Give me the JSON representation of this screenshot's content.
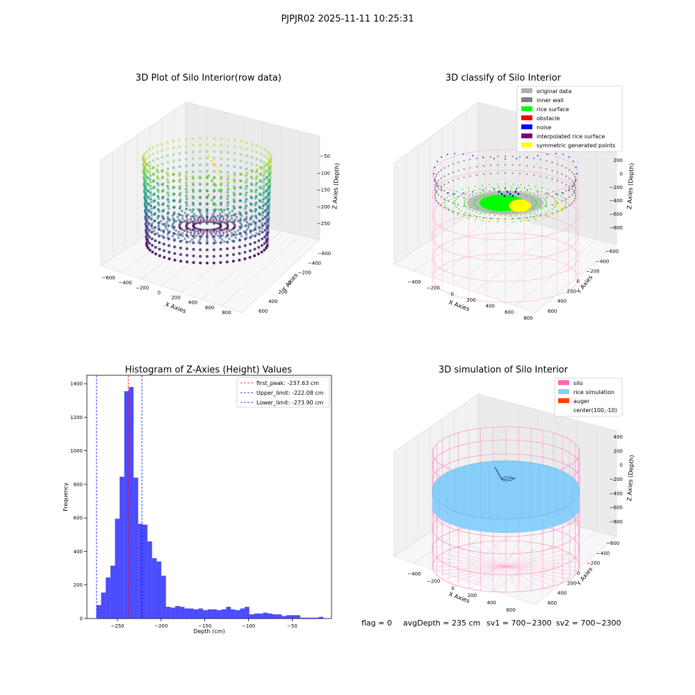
{
  "suptitle": "PJPJR02 2025-11-11 10:25:31",
  "panels": {
    "raw": {
      "title": "3D Plot of Silo Interior(row data)",
      "xlabel": "X Axies",
      "ylabel": "Y Axies",
      "zlabel": "Z Axies (Depth)",
      "xticks": [
        "−600",
        "−400",
        "−200",
        "0",
        "200",
        "400",
        "600",
        "800"
      ],
      "yticks": [
        "−600",
        "−400",
        "−200",
        "0",
        "200",
        "400",
        "600"
      ],
      "zticks": [
        "−50",
        "−100",
        "−150",
        "−200",
        "−250"
      ]
    },
    "classify": {
      "title": "3D classify of Silo Interior",
      "xlabel": "X Axies",
      "ylabel": "Y Axies",
      "zlabel": "Z Axies (Depth)",
      "xticks": [
        "−400",
        "−200",
        "0",
        "200",
        "400",
        "600",
        "800"
      ],
      "yticks": [
        "−600",
        "−400",
        "−200",
        "0",
        "200",
        "400",
        "600"
      ],
      "zticks": [
        "200",
        "0",
        "−200",
        "−400",
        "−600",
        "−800"
      ],
      "legend": [
        {
          "label": "original data",
          "color": "#b0b0b0"
        },
        {
          "label": "inner wall",
          "color": "#808080"
        },
        {
          "label": "rice surface",
          "color": "#00ff00"
        },
        {
          "label": "obstacle",
          "color": "#ff0000"
        },
        {
          "label": "noise",
          "color": "#0000ff"
        },
        {
          "label": "interpolated rice surface",
          "color": "#800080"
        },
        {
          "label": "symmetric generated points",
          "color": "#ffff00"
        }
      ]
    },
    "simulation": {
      "title": "3D simulation of Silo Interior",
      "xlabel": "X Axies",
      "ylabel": "Y Axies",
      "zlabel": "Z Axies (Depth)",
      "xticks": [
        "−400",
        "−200",
        "0",
        "200",
        "400",
        "600"
      ],
      "yticks": [
        "−600",
        "−400",
        "−200",
        "0",
        "200",
        "400",
        "600"
      ],
      "zticks": [
        "400",
        "200",
        "0",
        "−200",
        "−400",
        "−600",
        "−800"
      ],
      "legend": [
        {
          "label": "silo",
          "color": "#ff69b4"
        },
        {
          "label": "rice simulation",
          "color": "#87cefa"
        },
        {
          "label": "auger",
          "color": "#ff4500"
        },
        {
          "label": "center(100,-10)",
          "color": ""
        }
      ]
    }
  },
  "status_line": {
    "flag": "flag = 0",
    "avg_depth": "avgDepth = 235 cm",
    "sv1": "sv1 = 700~2300",
    "sv2": "sv2 = 700~2300"
  },
  "chart_data": {
    "type": "bar",
    "title": "Histogram of Z-Axies (Height) Values",
    "xlabel": "Depth (cm)",
    "ylabel": "Frequency",
    "xlim": [
      -285,
      -5
    ],
    "ylim": [
      0,
      1450
    ],
    "xticks": [
      -250,
      -200,
      -150,
      -100,
      -50
    ],
    "yticks": [
      0,
      200,
      400,
      600,
      800,
      1000,
      1200,
      1400
    ],
    "bar_color": "#0000ff",
    "bin_width": 5.3,
    "series": [
      {
        "bin_start": [
          -274,
          -268.7,
          -263.4,
          -258.1,
          -252.8,
          -247.5,
          -242.2,
          -236.9,
          -231.6,
          -226.3,
          -221.0,
          -215.7,
          -210.4,
          -205.1,
          -199.8,
          -194.5,
          -189.2,
          -183.9,
          -178.6,
          -173.3,
          -168.0,
          -162.7,
          -157.4,
          -152.1,
          -146.8,
          -141.5,
          -136.2,
          -130.9,
          -125.6,
          -120.3,
          -115.0,
          -109.7,
          -104.4,
          -99.1,
          -93.8,
          -88.5,
          -83.2,
          -77.9,
          -72.6,
          -67.3,
          -62.0,
          -56.7,
          -51.4,
          -46.1,
          -40.8,
          -35.5,
          -30.2,
          -24.9,
          -19.6
        ],
        "values": [
          80,
          155,
          245,
          315,
          595,
          845,
          1355,
          1380,
          840,
          565,
          560,
          460,
          360,
          340,
          255,
          70,
          65,
          75,
          70,
          60,
          60,
          55,
          60,
          50,
          55,
          55,
          50,
          55,
          70,
          55,
          50,
          60,
          70,
          25,
          30,
          30,
          35,
          30,
          25,
          25,
          15,
          20,
          20,
          20,
          5,
          5,
          5,
          5,
          10
        ]
      }
    ],
    "vlines": [
      {
        "label": "first_peak: -237.63 cm",
        "x": -237.63,
        "color": "#ff0000"
      },
      {
        "label": "Upper_limit: -222.08 cm",
        "x": -222.08,
        "color": "#0000ff"
      },
      {
        "label": "Lower_limit: -273.90 cm",
        "x": -273.9,
        "color": "#0000ff"
      }
    ],
    "legend_position": "top-right"
  }
}
